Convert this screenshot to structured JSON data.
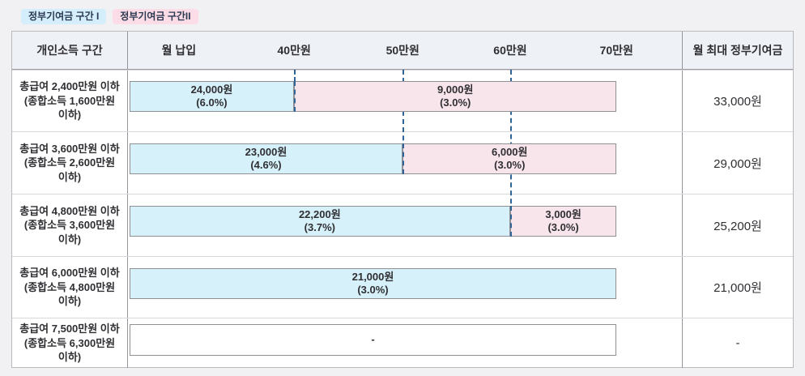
{
  "legend": [
    {
      "label": "정부기여금 구간 I",
      "color": "#d4eefb"
    },
    {
      "label": "정부기여금 구간II",
      "color": "#fcdce6"
    }
  ],
  "colors": {
    "zone1_fill": "#d7f1fa",
    "zone2_fill": "#f8e5ec",
    "empty_fill": "#ffffff",
    "bar_border": "#8f8f94",
    "guide_line": "#2e6496",
    "header_bg": "#eef1f5",
    "page_bg": "#f1f1f3"
  },
  "table": {
    "col1_header": "개인소득 구간",
    "col3_header": "월 최대 정부기여금",
    "ticks": [
      {
        "label": "월 납입",
        "pct": 9.2
      },
      {
        "label": "40만원",
        "pct": 30.0
      },
      {
        "label": "50만원",
        "pct": 49.6
      },
      {
        "label": "60만원",
        "pct": 69.0
      },
      {
        "label": "70만원",
        "pct": 88.2
      }
    ],
    "guides": [
      {
        "pct": 30.0,
        "rows": 1
      },
      {
        "pct": 49.6,
        "rows": 2
      },
      {
        "pct": 69.0,
        "rows": 3
      }
    ],
    "rows": [
      {
        "label": "총급여 2,400만원 이하 (종합소득 1,600만원 이하)",
        "segments": [
          {
            "zone": "I",
            "value": "24,000원",
            "rate": "(6.0%)",
            "start_pct": 0.25,
            "end_pct": 30.0
          },
          {
            "zone": "II",
            "value": "9,000원",
            "rate": "(3.0%)",
            "start_pct": 30.0,
            "end_pct": 88.2
          }
        ],
        "max": "33,000원"
      },
      {
        "label": "총급여 3,600만원 이하 (종합소득 2,600만원 이하)",
        "segments": [
          {
            "zone": "I",
            "value": "23,000원",
            "rate": "(4.6%)",
            "start_pct": 0.25,
            "end_pct": 49.6
          },
          {
            "zone": "II",
            "value": "6,000원",
            "rate": "(3.0%)",
            "start_pct": 49.6,
            "end_pct": 88.2
          }
        ],
        "max": "29,000원"
      },
      {
        "label": "총급여 4,800만원 이하 (종합소득 3,600만원 이하)",
        "segments": [
          {
            "zone": "I",
            "value": "22,200원",
            "rate": "(3.7%)",
            "start_pct": 0.25,
            "end_pct": 69.0
          },
          {
            "zone": "II",
            "value": "3,000원",
            "rate": "(3.0%)",
            "start_pct": 69.0,
            "end_pct": 88.2
          }
        ],
        "max": "25,200원"
      },
      {
        "label": "총급여 6,000만원 이하 (종합소득 4,800만원 이하)",
        "segments": [
          {
            "zone": "I",
            "value": "21,000원",
            "rate": "(3.0%)",
            "start_pct": 0.25,
            "end_pct": 88.2
          }
        ],
        "max": "21,000원"
      },
      {
        "label": "총급여 7,500만원 이하 (종합소득 6,300만원 이하)",
        "segments": [
          {
            "zone": "none",
            "value": "-",
            "rate": "",
            "start_pct": 0.25,
            "end_pct": 88.2
          }
        ],
        "max": "-"
      }
    ]
  },
  "chart_data": {
    "type": "bar",
    "orientation": "horizontal-segmented",
    "x_axis_label": "월 납입",
    "x_ticks_manwon": [
      40,
      50,
      60,
      70
    ],
    "legend": [
      "정부기여금 구간 I",
      "정부기여금 구간II"
    ],
    "rows": [
      {
        "income_bracket": "총급여 2,400만원 이하 (종합소득 1,600만원 이하)",
        "zone1": {
          "amount_won": 24000,
          "rate_pct": 6.0,
          "payment_range_manwon": [
            0,
            40
          ]
        },
        "zone2": {
          "amount_won": 9000,
          "rate_pct": 3.0,
          "payment_range_manwon": [
            40,
            70
          ]
        },
        "monthly_max_won": 33000
      },
      {
        "income_bracket": "총급여 3,600만원 이하 (종합소득 2,600만원 이하)",
        "zone1": {
          "amount_won": 23000,
          "rate_pct": 4.6,
          "payment_range_manwon": [
            0,
            50
          ]
        },
        "zone2": {
          "amount_won": 6000,
          "rate_pct": 3.0,
          "payment_range_manwon": [
            50,
            70
          ]
        },
        "monthly_max_won": 29000
      },
      {
        "income_bracket": "총급여 4,800만원 이하 (종합소득 3,600만원 이하)",
        "zone1": {
          "amount_won": 22200,
          "rate_pct": 3.7,
          "payment_range_manwon": [
            0,
            60
          ]
        },
        "zone2": {
          "amount_won": 3000,
          "rate_pct": 3.0,
          "payment_range_manwon": [
            60,
            70
          ]
        },
        "monthly_max_won": 25200
      },
      {
        "income_bracket": "총급여 6,000만원 이하 (종합소득 4,800만원 이하)",
        "zone1": {
          "amount_won": 21000,
          "rate_pct": 3.0,
          "payment_range_manwon": [
            0,
            70
          ]
        },
        "zone2": null,
        "monthly_max_won": 21000
      },
      {
        "income_bracket": "총급여 7,500만원 이하 (종합소득 6,300만원 이하)",
        "zone1": null,
        "zone2": null,
        "monthly_max_won": null
      }
    ]
  }
}
